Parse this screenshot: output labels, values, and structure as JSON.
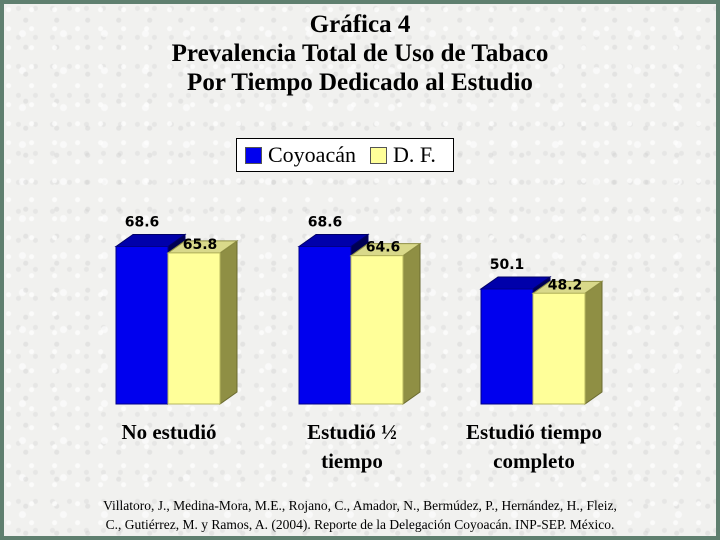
{
  "chart_data": {
    "type": "bar",
    "title": [
      "Gráfica 4",
      "Prevalencia Total de Uso de Tabaco",
      "Por Tiempo Dedicado al Estudio"
    ],
    "categories": [
      [
        "No estudió"
      ],
      [
        "Estudió ½",
        "tiempo"
      ],
      [
        "Estudió tiempo",
        "completo"
      ]
    ],
    "series": [
      {
        "name": "Coyoacán",
        "values": [
          68.6,
          68.6,
          50.1
        ],
        "color": "#0000ee"
      },
      {
        "name": "D. F.",
        "values": [
          65.8,
          64.6,
          48.2
        ],
        "color": "#ffff99"
      }
    ],
    "ylim": [
      0,
      100
    ],
    "grid": false,
    "legend": "top-center",
    "style": "3d-bar"
  },
  "source": [
    "Villatoro, J., Medina-Mora, M.E., Rojano, C., Amador, N., Bermúdez, P., Hernández, H., Fleiz,",
    "C., Gutiérrez, M. y Ramos, A. (2004). Reporte de la Delegación Coyoacán. INP-SEP. México."
  ]
}
